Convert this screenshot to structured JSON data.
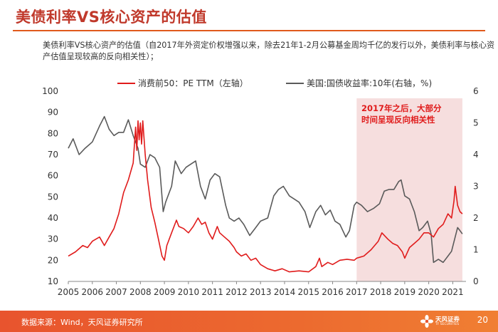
{
  "page": {
    "title": "美债利率VS核心资产的估值",
    "subtitle": "美债利率VS核心资产的估值（自2017年外资定价权增强以来，除去21年1-2月公募基金周均千亿的发行以外，美债利率与核心资产估值呈现较高的反向相关性）；",
    "source": "数据来源：Wind，天风证券研究所",
    "page_number": "20",
    "logo_text": "天风证券",
    "logo_subtext": "TF SECURITIES"
  },
  "colors": {
    "red_series": "#e01b1b",
    "gray_series": "#5a5a5a",
    "shade": "#f6dede",
    "annotation": "#e01b1b",
    "brand": "#e8542e"
  },
  "chart_data": {
    "type": "line",
    "title": "",
    "x_ticks": [
      "2005",
      "2006",
      "2007",
      "2008",
      "2009",
      "2010",
      "2011",
      "2012",
      "2013",
      "2014",
      "2015",
      "2016",
      "2017",
      "2018",
      "2019",
      "2020",
      "2021"
    ],
    "y_left": {
      "min": 10,
      "max": 100,
      "ticks": [
        10,
        20,
        30,
        40,
        50,
        60,
        70,
        80,
        90,
        100
      ]
    },
    "y_right": {
      "min": 0,
      "max": 6,
      "ticks": [
        0,
        1,
        2,
        3,
        4,
        5,
        6
      ]
    },
    "legend": [
      "消费前50：PE TTM（左轴）",
      "美国:国债收益率:10年(右轴，%)"
    ],
    "shaded_region": {
      "from": 2017.0,
      "to": 2021.4
    },
    "annotation": "2017年之后，大部分时间呈现反向相关性",
    "series": [
      {
        "name": "消费前50：PE TTM（左轴）",
        "axis": "left",
        "points": [
          [
            2005.0,
            22
          ],
          [
            2005.3,
            24
          ],
          [
            2005.6,
            27
          ],
          [
            2005.8,
            26
          ],
          [
            2006.0,
            29
          ],
          [
            2006.3,
            31
          ],
          [
            2006.5,
            27
          ],
          [
            2006.7,
            31
          ],
          [
            2006.9,
            35
          ],
          [
            2007.1,
            42
          ],
          [
            2007.3,
            52
          ],
          [
            2007.5,
            58
          ],
          [
            2007.7,
            66
          ],
          [
            2007.8,
            83
          ],
          [
            2007.85,
            72
          ],
          [
            2007.9,
            86
          ],
          [
            2007.95,
            77
          ],
          [
            2008.0,
            85
          ],
          [
            2008.05,
            75
          ],
          [
            2008.1,
            86
          ],
          [
            2008.2,
            70
          ],
          [
            2008.3,
            58
          ],
          [
            2008.45,
            45
          ],
          [
            2008.6,
            38
          ],
          [
            2008.75,
            30
          ],
          [
            2008.9,
            22
          ],
          [
            2009.0,
            20
          ],
          [
            2009.1,
            27
          ],
          [
            2009.3,
            33
          ],
          [
            2009.5,
            39
          ],
          [
            2009.6,
            36
          ],
          [
            2009.8,
            35
          ],
          [
            2010.0,
            33
          ],
          [
            2010.2,
            36
          ],
          [
            2010.4,
            40
          ],
          [
            2010.55,
            37
          ],
          [
            2010.7,
            38
          ],
          [
            2010.85,
            33
          ],
          [
            2011.0,
            30
          ],
          [
            2011.2,
            36
          ],
          [
            2011.3,
            33
          ],
          [
            2011.5,
            31
          ],
          [
            2011.7,
            29
          ],
          [
            2011.9,
            26
          ],
          [
            2012.0,
            24
          ],
          [
            2012.2,
            22
          ],
          [
            2012.4,
            23
          ],
          [
            2012.6,
            20
          ],
          [
            2012.8,
            21
          ],
          [
            2013.0,
            18
          ],
          [
            2013.3,
            16
          ],
          [
            2013.6,
            15
          ],
          [
            2013.9,
            16
          ],
          [
            2014.2,
            14.5
          ],
          [
            2014.6,
            15
          ],
          [
            2015.0,
            14.5
          ],
          [
            2015.3,
            17
          ],
          [
            2015.45,
            21
          ],
          [
            2015.55,
            17
          ],
          [
            2015.8,
            19
          ],
          [
            2016.0,
            18
          ],
          [
            2016.3,
            20
          ],
          [
            2016.6,
            20.5
          ],
          [
            2016.9,
            20
          ],
          [
            2017.0,
            21
          ],
          [
            2017.3,
            22
          ],
          [
            2017.6,
            25
          ],
          [
            2017.9,
            29
          ],
          [
            2018.05,
            33
          ],
          [
            2018.3,
            30
          ],
          [
            2018.5,
            28
          ],
          [
            2018.7,
            27
          ],
          [
            2018.9,
            24
          ],
          [
            2019.0,
            21
          ],
          [
            2019.2,
            26
          ],
          [
            2019.4,
            28
          ],
          [
            2019.6,
            30
          ],
          [
            2019.8,
            33
          ],
          [
            2020.0,
            33
          ],
          [
            2020.2,
            31
          ],
          [
            2020.4,
            35
          ],
          [
            2020.6,
            37
          ],
          [
            2020.8,
            42
          ],
          [
            2020.95,
            40
          ],
          [
            2021.05,
            48
          ],
          [
            2021.1,
            55
          ],
          [
            2021.2,
            46
          ],
          [
            2021.3,
            43
          ],
          [
            2021.4,
            42
          ]
        ]
      },
      {
        "name": "美国:国债收益率:10年(右轴，%)",
        "axis": "right",
        "points": [
          [
            2005.0,
            4.2
          ],
          [
            2005.2,
            4.5
          ],
          [
            2005.45,
            4.0
          ],
          [
            2005.7,
            4.2
          ],
          [
            2006.0,
            4.4
          ],
          [
            2006.3,
            4.9
          ],
          [
            2006.5,
            5.2
          ],
          [
            2006.7,
            4.8
          ],
          [
            2006.9,
            4.6
          ],
          [
            2007.1,
            4.7
          ],
          [
            2007.3,
            4.7
          ],
          [
            2007.5,
            5.1
          ],
          [
            2007.7,
            4.6
          ],
          [
            2007.9,
            4.2
          ],
          [
            2008.0,
            3.7
          ],
          [
            2008.2,
            3.6
          ],
          [
            2008.4,
            4.0
          ],
          [
            2008.6,
            3.9
          ],
          [
            2008.8,
            3.6
          ],
          [
            2008.95,
            2.2
          ],
          [
            2009.05,
            2.5
          ],
          [
            2009.3,
            3.0
          ],
          [
            2009.45,
            3.8
          ],
          [
            2009.7,
            3.4
          ],
          [
            2009.9,
            3.6
          ],
          [
            2010.1,
            3.7
          ],
          [
            2010.3,
            3.8
          ],
          [
            2010.5,
            3.0
          ],
          [
            2010.7,
            2.6
          ],
          [
            2010.9,
            3.2
          ],
          [
            2011.1,
            3.4
          ],
          [
            2011.3,
            3.3
          ],
          [
            2011.55,
            2.4
          ],
          [
            2011.7,
            2.0
          ],
          [
            2011.9,
            1.9
          ],
          [
            2012.1,
            2.0
          ],
          [
            2012.3,
            1.8
          ],
          [
            2012.55,
            1.45
          ],
          [
            2012.8,
            1.7
          ],
          [
            2013.0,
            1.9
          ],
          [
            2013.3,
            2.0
          ],
          [
            2013.55,
            2.7
          ],
          [
            2013.75,
            2.9
          ],
          [
            2013.95,
            3.0
          ],
          [
            2014.2,
            2.7
          ],
          [
            2014.4,
            2.6
          ],
          [
            2014.6,
            2.5
          ],
          [
            2014.85,
            2.2
          ],
          [
            2015.05,
            1.7
          ],
          [
            2015.3,
            2.2
          ],
          [
            2015.5,
            2.4
          ],
          [
            2015.7,
            2.1
          ],
          [
            2015.9,
            2.25
          ],
          [
            2016.1,
            1.9
          ],
          [
            2016.3,
            1.8
          ],
          [
            2016.55,
            1.4
          ],
          [
            2016.7,
            1.6
          ],
          [
            2016.9,
            2.4
          ],
          [
            2017.0,
            2.5
          ],
          [
            2017.2,
            2.4
          ],
          [
            2017.45,
            2.2
          ],
          [
            2017.7,
            2.3
          ],
          [
            2017.95,
            2.45
          ],
          [
            2018.15,
            2.85
          ],
          [
            2018.35,
            2.9
          ],
          [
            2018.55,
            2.9
          ],
          [
            2018.75,
            3.15
          ],
          [
            2018.85,
            3.2
          ],
          [
            2019.0,
            2.7
          ],
          [
            2019.2,
            2.6
          ],
          [
            2019.4,
            2.2
          ],
          [
            2019.6,
            1.6
          ],
          [
            2019.75,
            1.7
          ],
          [
            2019.95,
            1.9
          ],
          [
            2020.1,
            1.5
          ],
          [
            2020.2,
            0.6
          ],
          [
            2020.4,
            0.7
          ],
          [
            2020.6,
            0.6
          ],
          [
            2020.8,
            0.8
          ],
          [
            2020.95,
            0.95
          ],
          [
            2021.1,
            1.4
          ],
          [
            2021.2,
            1.7
          ],
          [
            2021.3,
            1.6
          ],
          [
            2021.4,
            1.5
          ]
        ]
      }
    ]
  }
}
